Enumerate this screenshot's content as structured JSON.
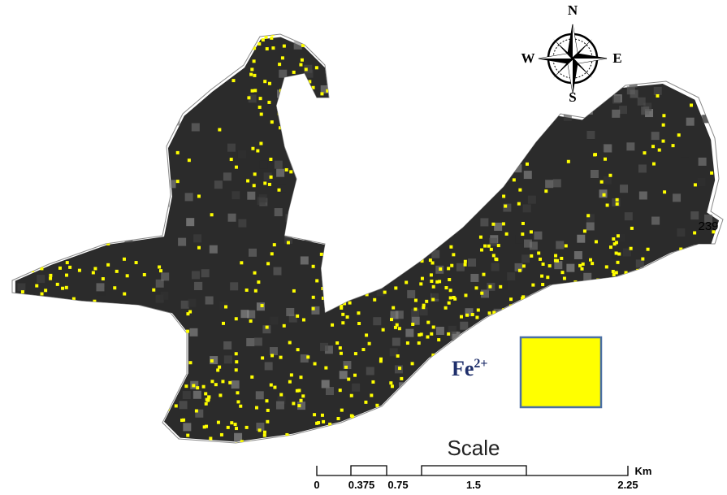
{
  "map": {
    "compass": {
      "north": "N",
      "south": "S",
      "east": "E",
      "west": "W"
    },
    "point_label": "239",
    "legend": {
      "label": "Fe",
      "superscript": "2+",
      "color": "#ffff00"
    },
    "scale_bar": {
      "title": "Scale",
      "unit": "Km",
      "ticks": [
        0,
        0.375,
        0.75,
        1.5,
        2.25
      ]
    }
  }
}
